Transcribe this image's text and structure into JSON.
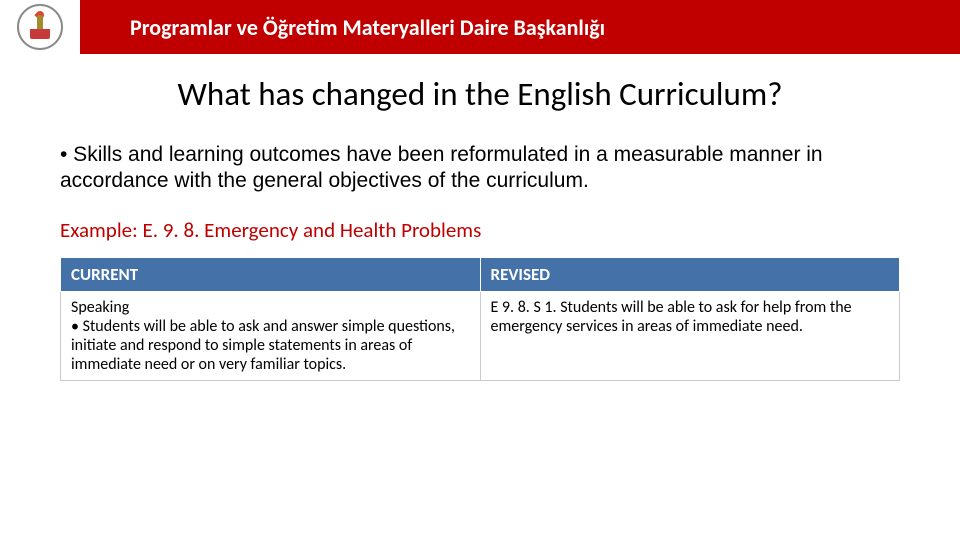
{
  "colors": {
    "header_bg": "#c00000",
    "header_text": "#ffffff",
    "page_title": "#000000",
    "body_text": "#000000",
    "example_text": "#c00000",
    "table_header_bg": "#4472a8",
    "table_header_text": "#ffffff",
    "table_border": "#cccccc",
    "background": "#ffffff"
  },
  "header": {
    "title": "Programlar ve Öğretim Materyalleri Daire Başkanlığı"
  },
  "page": {
    "title": "What has changed in the English Curriculum?",
    "body": "• Skills and learning outcomes have been reformulated in a measurable manner in accordance with the general objectives of the curriculum.",
    "example_label": "Example: E. 9. 8. Emergency and Health Problems"
  },
  "table": {
    "columns": [
      "CURRENT",
      "REVISED"
    ],
    "rows": [
      [
        "Speaking\n• Students will be able to ask and answer simple questions, initiate and respond to simple statements in areas of immediate need or on very familiar topics.",
        "E 9. 8. S 1.  Students will be able to ask for help from the emergency services in areas of immediate need."
      ]
    ],
    "col_widths": [
      "50%",
      "50%"
    ]
  },
  "typography": {
    "header_title_size": 22,
    "page_title_size": 33,
    "body_size": 21,
    "example_size": 21,
    "table_header_size": 17,
    "table_cell_size": 16
  }
}
